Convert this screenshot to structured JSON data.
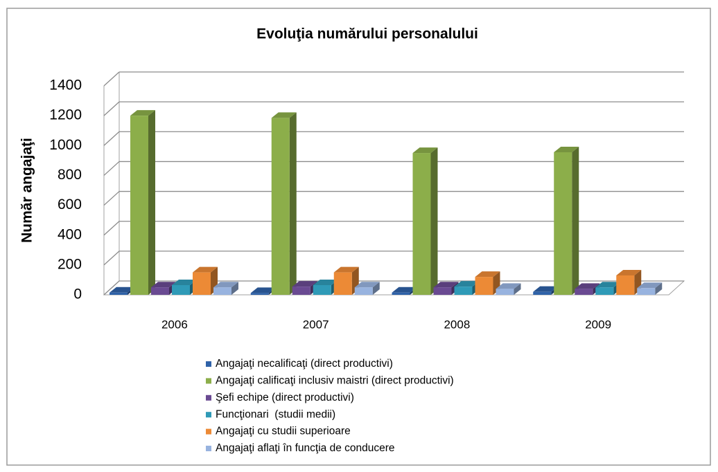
{
  "chart_data": {
    "type": "bar3d",
    "title": "Evoluţia numărului personalului",
    "y_label": "Număr angajaţi",
    "categories": [
      "2006",
      "2007",
      "2008",
      "2009"
    ],
    "series": [
      {
        "name": "Angajaţi necalificaţi (direct productivi)",
        "color": "#2f62a8",
        "values": [
          15,
          12,
          15,
          20
        ]
      },
      {
        "name": "Angajaţi calificaţi inclusiv maistri (direct productivi)",
        "color": "#8cae4a",
        "values": [
          1200,
          1185,
          950,
          955
        ]
      },
      {
        "name": "Şefi echipe (direct productivi)",
        "color": "#6a4a92",
        "values": [
          50,
          55,
          50,
          40
        ]
      },
      {
        "name": "Funcţionari  (studii medii)",
        "color": "#2f9ab7",
        "values": [
          65,
          65,
          55,
          50
        ]
      },
      {
        "name": "Angajaţi cu studii superioare",
        "color": "#ec8a36",
        "values": [
          150,
          150,
          120,
          130
        ]
      },
      {
        "name": "Angajaţi aflaţi în funcţia de conducere",
        "color": "#98b3df",
        "values": [
          50,
          50,
          40,
          45
        ]
      }
    ],
    "ylim": [
      0,
      1400
    ],
    "yticks": [
      0,
      200,
      400,
      600,
      800,
      1000,
      1200,
      1400
    ],
    "grid": true
  }
}
